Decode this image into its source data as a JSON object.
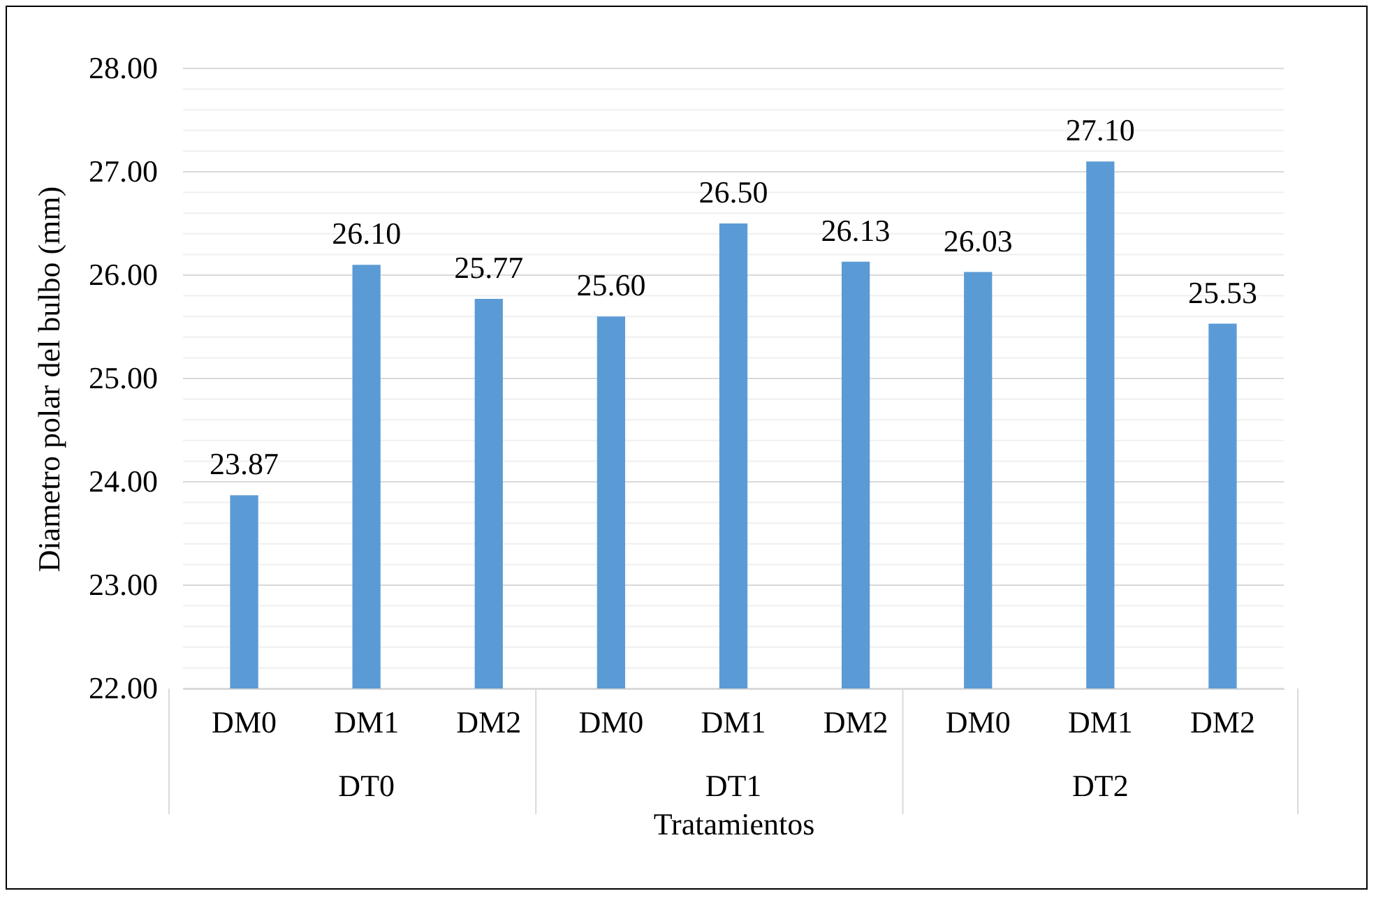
{
  "chart_data": {
    "type": "bar",
    "xlabel": "Tratamientos",
    "ylabel": "Diametro polar del bulbo (mm)",
    "categories": [
      "DM0",
      "DM1",
      "DM2",
      "DM0",
      "DM1",
      "DM2",
      "DM0",
      "DM1",
      "DM2"
    ],
    "values": [
      23.87,
      26.1,
      25.77,
      25.6,
      26.5,
      26.13,
      26.03,
      27.1,
      25.53
    ],
    "value_labels": [
      "23.87",
      "26.10",
      "25.77",
      "25.60",
      "26.50",
      "26.13",
      "26.03",
      "27.10",
      "25.53"
    ],
    "color": "#5b9bd5",
    "ylim": [
      22,
      28
    ],
    "yticks": [
      {
        "value": 22,
        "label": "22.00"
      },
      {
        "value": 22.2,
        "label": null
      },
      {
        "value": 22.4,
        "label": null
      },
      {
        "value": 22.6,
        "label": null
      },
      {
        "value": 22.8,
        "label": null
      },
      {
        "value": 23,
        "label": "23.00"
      },
      {
        "value": 23.2,
        "label": null
      },
      {
        "value": 23.4,
        "label": null
      },
      {
        "value": 23.6,
        "label": null
      },
      {
        "value": 23.8,
        "label": null
      },
      {
        "value": 24,
        "label": "24.00"
      },
      {
        "value": 24.2,
        "label": null
      },
      {
        "value": 24.4,
        "label": null
      },
      {
        "value": 24.6,
        "label": null
      },
      {
        "value": 24.8,
        "label": null
      },
      {
        "value": 25,
        "label": "25.00"
      },
      {
        "value": 25.2,
        "label": null
      },
      {
        "value": 25.4,
        "label": null
      },
      {
        "value": 25.6,
        "label": null
      },
      {
        "value": 25.8,
        "label": null
      },
      {
        "value": 26,
        "label": "26.00"
      },
      {
        "value": 26.2,
        "label": null
      },
      {
        "value": 26.4,
        "label": null
      },
      {
        "value": 26.6,
        "label": null
      },
      {
        "value": 26.8,
        "label": null
      },
      {
        "value": 27,
        "label": "27.00"
      },
      {
        "value": 27.2,
        "label": null
      },
      {
        "value": 27.4,
        "label": null
      },
      {
        "value": 27.6,
        "label": null
      },
      {
        "value": 27.8,
        "label": null
      },
      {
        "value": 28,
        "label": "28.00"
      }
    ],
    "grid": true,
    "annotations": [
      "DT0",
      "DT1",
      "DT2"
    ]
  }
}
